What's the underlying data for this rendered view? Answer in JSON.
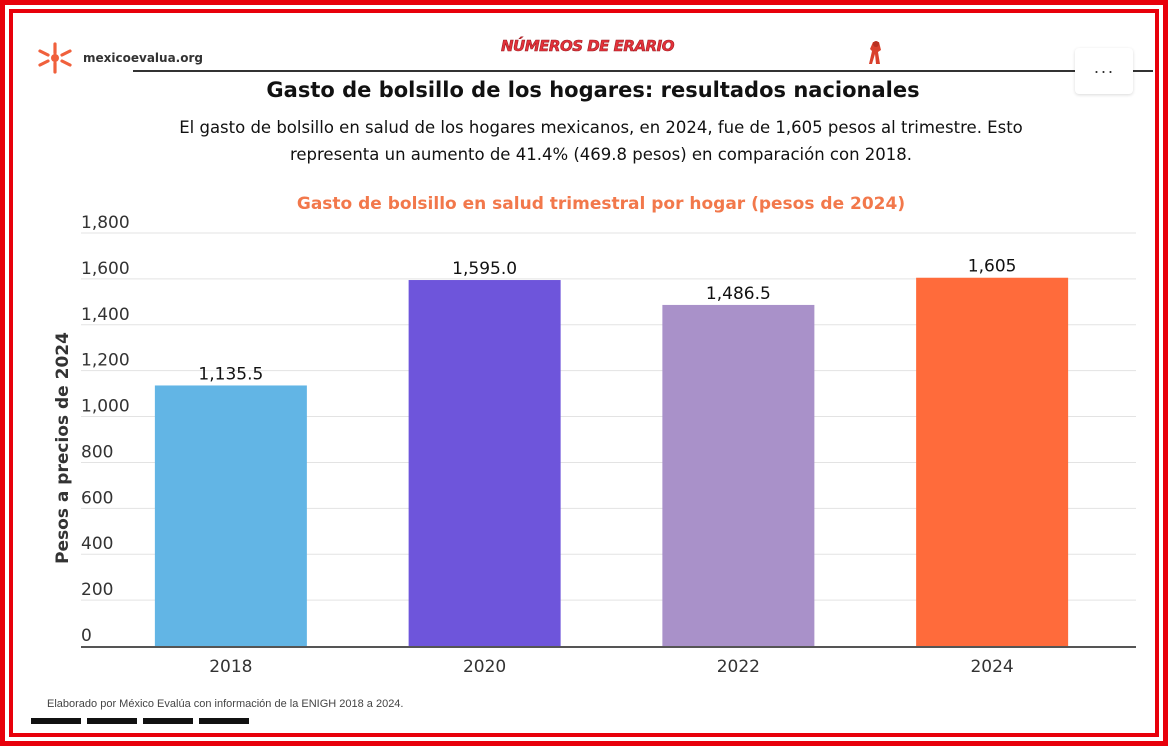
{
  "header": {
    "site": "mexicoevalua.org",
    "banner": "NÚMEROS DE ERARIO",
    "menu_label": "···"
  },
  "title": "Gasto de bolsillo de los hogares: resultados nacionales",
  "subtitle": "El gasto de bolsillo en salud de los hogares mexicanos, en 2024, fue de 1,605 pesos al trimestre. Esto representa un aumento de 41.4% (469.8 pesos) en comparación con 2018.",
  "source": "Elaborado por México Evalúa con información de la ENIGH 2018 a 2024.",
  "colors": {
    "frame": "#e8000b",
    "chart_title": "#f2784b",
    "brand_logo": "#f0603c"
  },
  "chart_data": {
    "type": "bar",
    "title": "Gasto de bolsillo en salud trimestral por hogar (pesos de 2024)",
    "xlabel": "",
    "ylabel": "Pesos a precios de 2024",
    "categories": [
      "2018",
      "2020",
      "2022",
      "2024"
    ],
    "values": [
      1135.5,
      1595.0,
      1486.5,
      1605
    ],
    "value_labels": [
      "1,135.5",
      "1,595.0",
      "1,486.5",
      "1,605"
    ],
    "bar_colors": [
      "#62b5e5",
      "#6e55db",
      "#a991c9",
      "#ff6b3b"
    ],
    "ylim": [
      0,
      1800
    ],
    "yticks": [
      0,
      200,
      400,
      600,
      800,
      1000,
      1200,
      1400,
      1600,
      1800
    ],
    "ytick_labels": [
      "0",
      "200",
      "400",
      "600",
      "800",
      "1,000",
      "1,200",
      "1,400",
      "1,600",
      "1,800"
    ],
    "grid": true,
    "legend": "none"
  }
}
